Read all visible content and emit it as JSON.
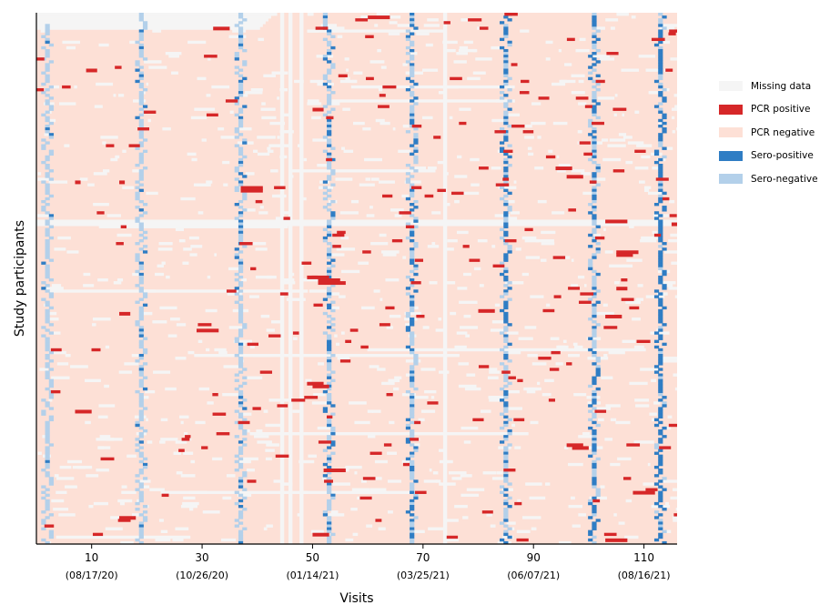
{
  "chart_data": {
    "type": "heatmap",
    "xlabel": "Visits",
    "ylabel": "Study participants",
    "xlim": [
      0,
      116
    ],
    "n_participants": 190,
    "x_ticks": [
      {
        "value": 10,
        "date": "(08/17/20)"
      },
      {
        "value": 30,
        "date": "(10/26/20)"
      },
      {
        "value": 50,
        "date": "(01/14/21)"
      },
      {
        "value": 70,
        "date": "(03/25/21)"
      },
      {
        "value": 90,
        "date": "(06/07/21)"
      },
      {
        "value": 110,
        "date": "(08/16/21)"
      }
    ],
    "legend": [
      {
        "key": "missing",
        "label": "Missing data",
        "color": "#f5f5f5"
      },
      {
        "key": "pcr_pos",
        "label": "PCR positive",
        "color": "#d62728"
      },
      {
        "key": "pcr_neg",
        "label": "PCR negative",
        "color": "#fde0d6"
      },
      {
        "key": "sero_pos",
        "label": "Sero-positive",
        "color": "#2f7dc4"
      },
      {
        "key": "sero_neg",
        "label": "Sero-negative",
        "color": "#b3d0ea"
      }
    ],
    "serology_visits": [
      2,
      19,
      37,
      53,
      68,
      85,
      101,
      113
    ],
    "missing_visit_columns": [
      44.5,
      46,
      48,
      74
    ],
    "late_enrollment": {
      "max_participants": 6,
      "start_visit_range": [
        40,
        43
      ]
    },
    "pcr_positive_episodes": [
      {
        "participant": 1,
        "start": 60,
        "end": 64
      },
      {
        "participant": 5,
        "start": 32,
        "end": 35
      },
      {
        "participant": 20,
        "start": 9,
        "end": 11
      },
      {
        "participant": 34,
        "start": 50,
        "end": 52
      },
      {
        "participant": 55,
        "start": 94,
        "end": 97
      },
      {
        "participant": 58,
        "start": 96,
        "end": 99
      },
      {
        "participant": 60,
        "start": 7,
        "end": 8
      },
      {
        "participant": 60,
        "start": 15,
        "end": 16
      },
      {
        "participant": 62,
        "start": 37,
        "end": 41
      },
      {
        "participant": 63,
        "start": 37,
        "end": 41
      },
      {
        "participant": 74,
        "start": 103,
        "end": 107
      },
      {
        "participant": 75,
        "start": 115,
        "end": 116
      },
      {
        "participant": 85,
        "start": 105,
        "end": 109
      },
      {
        "participant": 86,
        "start": 105,
        "end": 108
      },
      {
        "participant": 94,
        "start": 49,
        "end": 53
      },
      {
        "participant": 95,
        "start": 51,
        "end": 55
      },
      {
        "participant": 96,
        "start": 51,
        "end": 56
      },
      {
        "participant": 98,
        "start": 105,
        "end": 107
      },
      {
        "participant": 106,
        "start": 80,
        "end": 83
      },
      {
        "participant": 107,
        "start": 15,
        "end": 17
      },
      {
        "participant": 108,
        "start": 103,
        "end": 106
      },
      {
        "participant": 113,
        "start": 29,
        "end": 33
      },
      {
        "participant": 132,
        "start": 49,
        "end": 52
      },
      {
        "participant": 133,
        "start": 50,
        "end": 53
      },
      {
        "participant": 142,
        "start": 7,
        "end": 10
      },
      {
        "participant": 154,
        "start": 96,
        "end": 99
      },
      {
        "participant": 155,
        "start": 97,
        "end": 100
      },
      {
        "participant": 163,
        "start": 52,
        "end": 56
      },
      {
        "participant": 171,
        "start": 108,
        "end": 112
      },
      {
        "participant": 180,
        "start": 15,
        "end": 18
      },
      {
        "participant": 186,
        "start": 50,
        "end": 53
      },
      {
        "participant": 188,
        "start": 103,
        "end": 107
      }
    ]
  }
}
